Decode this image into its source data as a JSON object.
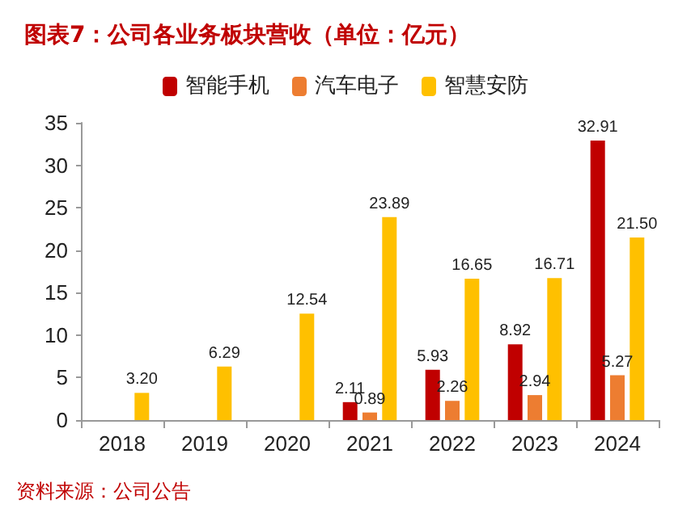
{
  "chart_data": {
    "type": "bar",
    "title": "图表7：公司各业务板块营收（单位：亿元）",
    "categories": [
      "2018",
      "2019",
      "2020",
      "2021",
      "2022",
      "2023",
      "2024"
    ],
    "series": [
      {
        "name": "智能手机",
        "color": "#c00000",
        "values": [
          null,
          null,
          null,
          2.11,
          5.93,
          8.92,
          32.91
        ],
        "value_labels": [
          null,
          null,
          null,
          "2.11",
          "5.93",
          "8.92",
          "32.91"
        ]
      },
      {
        "name": "汽车电子",
        "color": "#ed7d31",
        "values": [
          null,
          null,
          null,
          0.89,
          2.26,
          2.94,
          5.27
        ],
        "value_labels": [
          null,
          null,
          null,
          "0.89",
          "2.26",
          "2.94",
          "5.27"
        ]
      },
      {
        "name": "智慧安防",
        "color": "#ffc000",
        "values": [
          3.2,
          6.29,
          12.54,
          23.89,
          16.65,
          16.71,
          21.5
        ],
        "value_labels": [
          "3.20",
          "6.29",
          "12.54",
          "23.89",
          "16.65",
          "16.71",
          "21.50"
        ]
      }
    ],
    "ylim": [
      0,
      35
    ],
    "yticks": [
      0,
      5,
      10,
      15,
      20,
      25,
      30,
      35
    ],
    "grid": false,
    "legend": "top",
    "annotations": [
      "资料来源：公司公告"
    ]
  }
}
